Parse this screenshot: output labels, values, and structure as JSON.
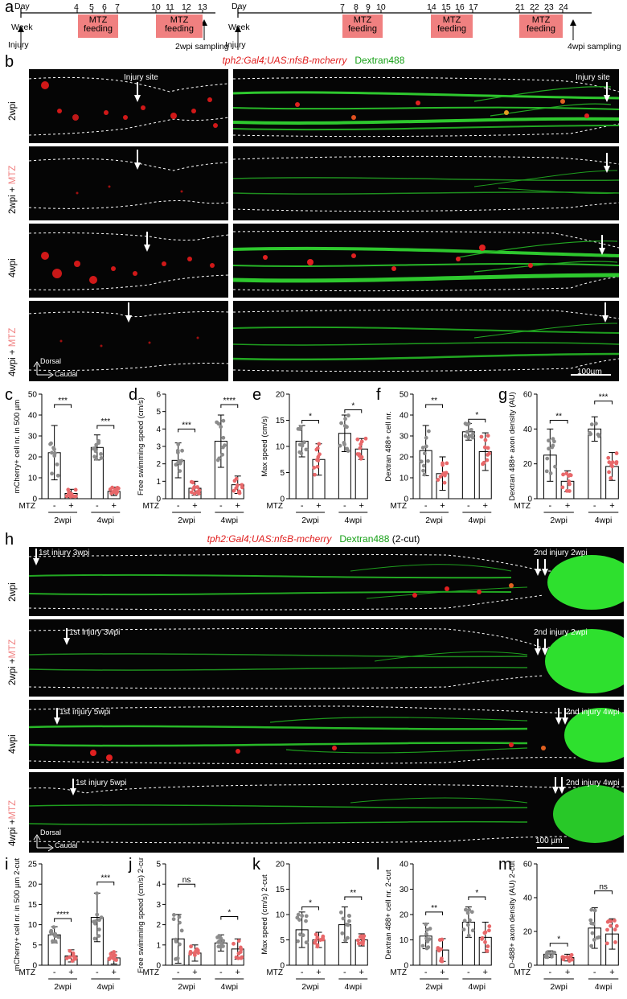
{
  "panel_letters": {
    "a": "a",
    "b": "b",
    "c": "c",
    "d": "d",
    "e": "e",
    "f": "f",
    "g": "g",
    "h": "h",
    "i": "i",
    "j": "j",
    "k": "k",
    "l": "l",
    "m": "m"
  },
  "timeline_left": {
    "day_label": "Day",
    "week_label": "Week",
    "ticks": [
      "4",
      "5",
      "6",
      "7",
      "10",
      "11",
      "12",
      "13"
    ],
    "feeding": [
      "MTZ\nfeeding",
      "MTZ\nfeeding"
    ],
    "injury": "Injury",
    "sampling": "2wpi sampling"
  },
  "timeline_right": {
    "day_label": "Day",
    "week_label": "Week",
    "ticks": [
      "7",
      "8",
      "9",
      "10",
      "14",
      "15",
      "16",
      "17",
      "21",
      "22",
      "23",
      "24"
    ],
    "feeding": [
      "MTZ\nfeeding",
      "MTZ\nfeeding",
      "MTZ\nfeeding"
    ],
    "injury": "Injury",
    "sampling": "4wpi sampling"
  },
  "legend_b": {
    "red": "tph2:Gal4;UAS:nfsB-mcherry",
    "green": "Dextran488"
  },
  "legend_h": {
    "red": "tph2:Gal4;UAS:nfsB-mcherry",
    "green": "Dextran488",
    "suffix": "(2-cut)"
  },
  "panel_b": {
    "rows": [
      {
        "label": "2wpi",
        "mtz": ""
      },
      {
        "label": "2wpi + ",
        "mtz": "MTZ"
      },
      {
        "label": "4wpi",
        "mtz": ""
      },
      {
        "label": "4wpi + ",
        "mtz": "MTZ"
      }
    ],
    "injury_site": "Injury site",
    "dorsal": "Dorsal",
    "caudal": "Caudal",
    "scale": "100µm"
  },
  "panel_h": {
    "rows": [
      {
        "label": "2wpi",
        "mtz": "",
        "first": "1st injury 3wpi",
        "second": "2nd injury 2wpi"
      },
      {
        "label": "2wpi +",
        "mtz": "MTZ",
        "first": "1st injury 3wpi",
        "second": "2nd injury 2wpi"
      },
      {
        "label": "4wpi",
        "mtz": "",
        "first": "1st injury 5wpi",
        "second": "2nd injury 4wpi"
      },
      {
        "label": "4wpi +",
        "mtz": "MTZ",
        "first": "1st injury 5wpi",
        "second": "2nd injury 4wpi"
      }
    ],
    "dorsal": "Dorsal",
    "caudal": "Caudal",
    "scale": "100 µm"
  },
  "axis_common": {
    "mtz_label": "MTZ",
    "minus": "-",
    "plus": "+",
    "group1": "2wpi",
    "group2": "4wpi"
  },
  "colors": {
    "ctrl_dot": "#8c8c8c",
    "mtz_dot": "#e8686a",
    "feeding_box": "#f08080",
    "mcherry": "#e02020",
    "dextran": "#16a016"
  },
  "chart_data": [
    {
      "id": "c",
      "type": "bar",
      "ylabel": "mCherry+ cell nr. in 500 µm",
      "ylim": [
        0,
        50
      ],
      "yticks": [
        0,
        10,
        20,
        30,
        40,
        50
      ],
      "categories": [
        "2wpi -",
        "2wpi +",
        "4wpi -",
        "4wpi +"
      ],
      "values": [
        22,
        2.5,
        24.5,
        3.5
      ],
      "errors": [
        13,
        2,
        6,
        2
      ],
      "sig": [
        {
          "a": 0,
          "b": 1,
          "label": "***",
          "y": 45
        },
        {
          "a": 2,
          "b": 3,
          "label": "***",
          "y": 35
        }
      ]
    },
    {
      "id": "d",
      "type": "bar",
      "ylabel": "Free swimming speed (cm/s)",
      "ylim": [
        0,
        6
      ],
      "yticks": [
        0,
        1,
        2,
        3,
        4,
        5,
        6
      ],
      "categories": [
        "2wpi -",
        "2wpi +",
        "4wpi -",
        "4wpi +"
      ],
      "values": [
        2.2,
        0.6,
        3.3,
        0.8
      ],
      "errors": [
        1.0,
        0.4,
        1.5,
        0.5
      ],
      "sig": [
        {
          "a": 0,
          "b": 1,
          "label": "***",
          "y": 4.0
        },
        {
          "a": 2,
          "b": 3,
          "label": "****",
          "y": 5.4
        }
      ]
    },
    {
      "id": "e",
      "type": "bar",
      "ylabel": "Max speed (cm/s)",
      "ylim": [
        0,
        20
      ],
      "yticks": [
        0,
        5,
        10,
        15,
        20
      ],
      "categories": [
        "2wpi -",
        "2wpi +",
        "4wpi -",
        "4wpi +"
      ],
      "values": [
        11,
        7.5,
        12.5,
        9.5
      ],
      "errors": [
        3,
        3,
        3.5,
        2
      ],
      "sig": [
        {
          "a": 0,
          "b": 1,
          "label": "*",
          "y": 15
        },
        {
          "a": 2,
          "b": 3,
          "label": "*",
          "y": 17
        }
      ]
    },
    {
      "id": "f",
      "type": "bar",
      "ylabel": "Dextran 488+ cell nr.",
      "ylim": [
        0,
        50
      ],
      "yticks": [
        0,
        10,
        20,
        30,
        40,
        50
      ],
      "categories": [
        "2wpi -",
        "2wpi +",
        "4wpi -",
        "4wpi +"
      ],
      "values": [
        23,
        12,
        32,
        22.5
      ],
      "errors": [
        12,
        8,
        4,
        9
      ],
      "sig": [
        {
          "a": 0,
          "b": 1,
          "label": "**",
          "y": 45
        },
        {
          "a": 2,
          "b": 3,
          "label": "*",
          "y": 38
        }
      ]
    },
    {
      "id": "g",
      "type": "bar",
      "ylabel": "Dextran 488+ axon density (AU)",
      "ylim": [
        0,
        60
      ],
      "yticks": [
        0,
        20,
        40,
        60
      ],
      "categories": [
        "2wpi -",
        "2wpi +",
        "4wpi -",
        "4wpi +"
      ],
      "values": [
        25,
        10,
        40,
        18.5
      ],
      "errors": [
        15,
        6,
        7,
        8
      ],
      "sig": [
        {
          "a": 0,
          "b": 1,
          "label": "**",
          "y": 45
        },
        {
          "a": 2,
          "b": 3,
          "label": "***",
          "y": 56
        }
      ]
    },
    {
      "id": "i",
      "type": "bar",
      "ylabel": "mCherry+ cell nr. in 500 µm 2-cut",
      "ylim": [
        0,
        25
      ],
      "yticks": [
        0,
        5,
        10,
        15,
        20,
        25
      ],
      "categories": [
        "2wpi -",
        "2wpi +",
        "4wpi -",
        "4wpi +"
      ],
      "values": [
        7.5,
        2.3,
        11.8,
        1.8
      ],
      "errors": [
        2,
        1.5,
        6,
        1.5
      ],
      "sig": [
        {
          "a": 0,
          "b": 1,
          "label": "****",
          "y": 11.5
        },
        {
          "a": 2,
          "b": 3,
          "label": "***",
          "y": 20.5
        }
      ]
    },
    {
      "id": "j",
      "type": "bar",
      "ylabel": "Free swimming speed (cm/s) 2-cut",
      "ylim": [
        0,
        5
      ],
      "yticks": [
        0,
        1,
        2,
        3,
        4,
        5
      ],
      "categories": [
        "2wpi -",
        "2wpi +",
        "4wpi -",
        "4wpi +"
      ],
      "values": [
        1.3,
        0.6,
        1.1,
        0.8
      ],
      "errors": [
        1.2,
        0.4,
        0.4,
        0.5
      ],
      "sig": [
        {
          "a": 0,
          "b": 1,
          "label": "ns",
          "y": 4.0
        },
        {
          "a": 2,
          "b": 3,
          "label": "*",
          "y": 2.4
        }
      ]
    },
    {
      "id": "k",
      "type": "bar",
      "ylabel": "Max speed (cm/s) 2-cut",
      "ylim": [
        0,
        20
      ],
      "yticks": [
        0,
        5,
        10,
        15,
        20
      ],
      "categories": [
        "2wpi -",
        "2wpi +",
        "4wpi -",
        "4wpi +"
      ],
      "values": [
        7,
        5,
        8,
        5
      ],
      "errors": [
        3.5,
        1.5,
        3.5,
        1.2
      ],
      "sig": [
        {
          "a": 0,
          "b": 1,
          "label": "*",
          "y": 11.5
        },
        {
          "a": 2,
          "b": 3,
          "label": "**",
          "y": 13.5
        }
      ]
    },
    {
      "id": "l",
      "type": "bar",
      "ylabel": "Dextran 488+ cell nr. 2-cut",
      "ylim": [
        0,
        40
      ],
      "yticks": [
        0,
        10,
        20,
        30,
        40
      ],
      "categories": [
        "2wpi -",
        "2wpi +",
        "4wpi -",
        "4wpi +"
      ],
      "values": [
        11.5,
        6,
        17,
        11
      ],
      "errors": [
        5,
        4.5,
        6,
        6
      ],
      "sig": [
        {
          "a": 0,
          "b": 1,
          "label": "**",
          "y": 21
        },
        {
          "a": 2,
          "b": 3,
          "label": "*",
          "y": 27
        }
      ]
    },
    {
      "id": "m",
      "type": "bar",
      "ylabel": "D-488+ axon density (AU) 2-cut",
      "ylim": [
        0,
        60
      ],
      "yticks": [
        0,
        20,
        40,
        60
      ],
      "categories": [
        "2wpi -",
        "2wpi +",
        "4wpi -",
        "4wpi +"
      ],
      "values": [
        6.5,
        4.5,
        22,
        18.5
      ],
      "errors": [
        2,
        2,
        12,
        9
      ],
      "sig": [
        {
          "a": 0,
          "b": 1,
          "label": "*",
          "y": 13
        },
        {
          "a": 2,
          "b": 3,
          "label": "ns",
          "y": 44
        }
      ]
    }
  ]
}
